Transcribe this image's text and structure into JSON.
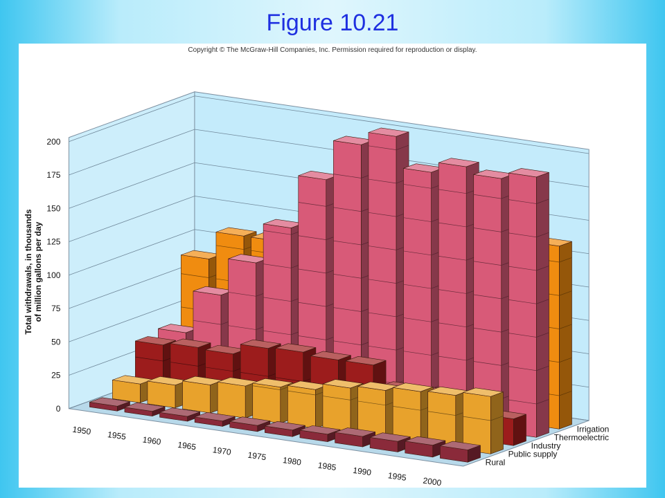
{
  "slide": {
    "title": "Figure 10.21"
  },
  "figure": {
    "copyright": "Copyright © The McGraw-Hill Companies, Inc. Permission required for reproduction or display."
  },
  "colors": {
    "Irrigation": "#f08c10",
    "Thermoelectric": "#d85a78",
    "Industry": "#9c1c1c",
    "Public supply": "#e8a22c",
    "Rural": "#8a2a3a"
  },
  "chart_data": {
    "type": "bar",
    "style": "3d-grouped-depth",
    "title": "",
    "ylabel": "Total withdrawals, in thousands of million gallons per day",
    "ylabel_lines": [
      "Total withdrawals, in thousands",
      "of million gallons per day"
    ],
    "xlabel": "",
    "ylim": [
      0,
      200
    ],
    "yticks": [
      0,
      25,
      50,
      75,
      100,
      125,
      150,
      175,
      200
    ],
    "grid": true,
    "categories": [
      "1950",
      "1955",
      "1960",
      "1965",
      "1970",
      "1975",
      "1980",
      "1985",
      "1990",
      "1995",
      "2000"
    ],
    "series": [
      {
        "name": "Irrigation",
        "values": [
          89,
          110,
          110,
          120,
          130,
          140,
          150,
          137,
          137,
          134,
          137
        ]
      },
      {
        "name": "Thermoelectric",
        "values": [
          40,
          72,
          100,
          130,
          170,
          200,
          210,
          187,
          195,
          190,
          195
        ]
      },
      {
        "name": "Industry",
        "values": [
          37,
          39,
          38,
          46,
          47,
          45,
          45,
          30,
          30,
          29,
          20
        ]
      },
      {
        "name": "Public supply",
        "values": [
          14,
          17,
          21,
          24,
          27,
          29,
          34,
          36,
          39,
          40,
          43
        ]
      },
      {
        "name": "Rural",
        "values": [
          3.6,
          3.6,
          3.6,
          4.0,
          4.5,
          4.9,
          5.6,
          7.8,
          7.9,
          8.9,
          9.2
        ]
      }
    ]
  }
}
